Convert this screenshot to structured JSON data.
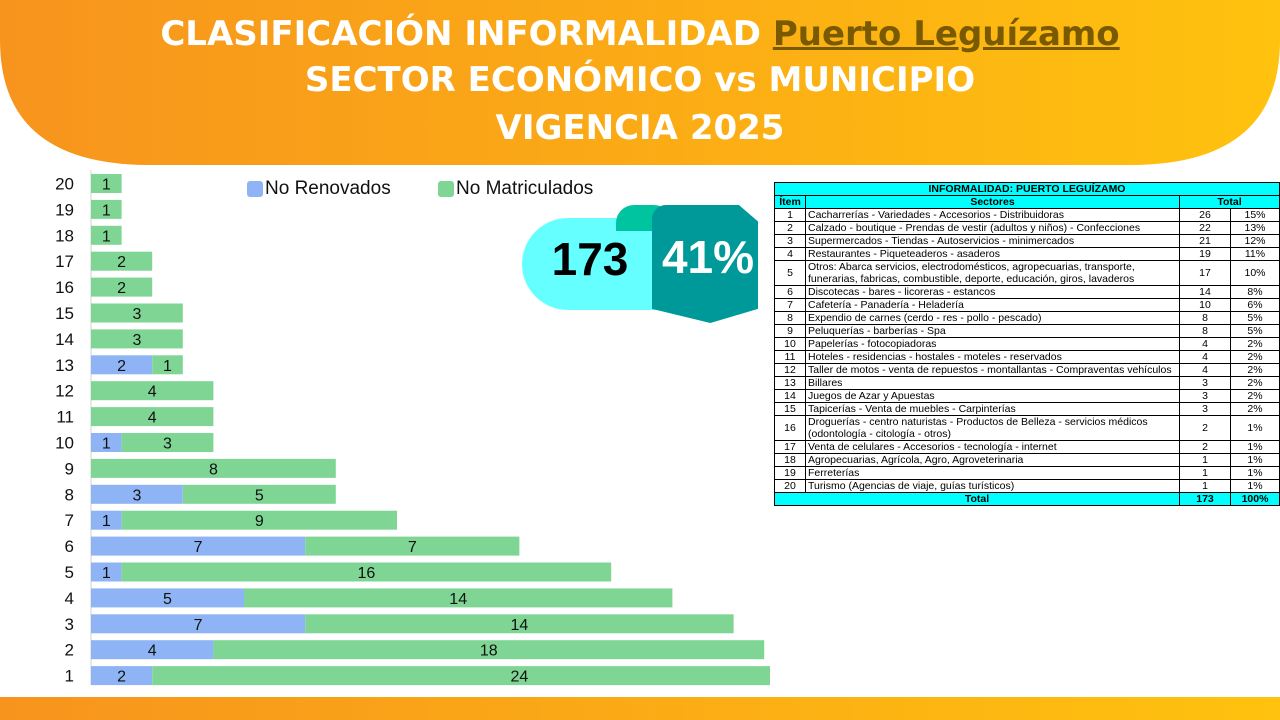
{
  "header": {
    "title_prefix": "CLASIFICACIÓN INFORMALIDAD",
    "municipality": "Puerto Leguízamo",
    "line2": "SECTOR ECONÓMICO vs MUNICIPIO",
    "line3": "VIGENCIA 2025"
  },
  "colors": {
    "header_gradient_start": "#f7941d",
    "header_gradient_end": "#ffc20e",
    "no_renovados": "#8fb4f5",
    "no_matriculados": "#7fd694",
    "table_header": "#00ffff",
    "badge_left": "#66ffff",
    "badge_right": "#009999"
  },
  "summary": {
    "total": "173",
    "percent": "41%"
  },
  "chart_data": {
    "type": "bar",
    "orientation": "horizontal",
    "stacked": true,
    "categories": [
      "1",
      "2",
      "3",
      "4",
      "5",
      "6",
      "7",
      "8",
      "9",
      "10",
      "11",
      "12",
      "13",
      "14",
      "15",
      "16",
      "17",
      "18",
      "19",
      "20"
    ],
    "series": [
      {
        "name": "No Renovados",
        "values": [
          2,
          4,
          7,
          5,
          1,
          7,
          1,
          3,
          0,
          1,
          0,
          0,
          2,
          0,
          0,
          0,
          0,
          0,
          0,
          0
        ]
      },
      {
        "name": "No Matriculados",
        "values": [
          24,
          18,
          14,
          14,
          16,
          7,
          9,
          5,
          8,
          3,
          4,
          4,
          1,
          3,
          3,
          2,
          2,
          1,
          1,
          1
        ]
      }
    ],
    "legend": [
      "No Renovados",
      "No Matriculados"
    ],
    "legend_position": "top",
    "xlim": [
      0,
      26
    ],
    "title": "",
    "xlabel": "",
    "ylabel": ""
  },
  "table": {
    "title": "INFORMALIDAD: PUERTO LEGUÍZAMO",
    "headers": {
      "item": "Ítem",
      "sector": "Sectores",
      "total": "Total"
    },
    "rows": [
      {
        "item": "1",
        "sector": "Cacharrerías - Variedades - Accesorios - Distribuidoras",
        "count": "26",
        "pct": "15%"
      },
      {
        "item": "2",
        "sector": "Calzado - boutique - Prendas de vestir (adultos y niños) - Confecciones",
        "count": "22",
        "pct": "13%"
      },
      {
        "item": "3",
        "sector": "Supermercados - Tiendas - Autoservicios - minimercados",
        "count": "21",
        "pct": "12%"
      },
      {
        "item": "4",
        "sector": "Restaurantes - Piqueteaderos - asaderos",
        "count": "19",
        "pct": "11%"
      },
      {
        "item": "5",
        "sector": "Otros: Abarca servicios, electrodomésticos, agropecuarias, transporte, funerarias, fabricas, combustible, deporte, educación, giros, lavaderos",
        "count": "17",
        "pct": "10%"
      },
      {
        "item": "6",
        "sector": "Discotecas - bares - licoreras - estancos",
        "count": "14",
        "pct": "8%"
      },
      {
        "item": "7",
        "sector": "Cafetería - Panadería - Heladería",
        "count": "10",
        "pct": "6%"
      },
      {
        "item": "8",
        "sector": "Expendio de carnes (cerdo - res - pollo - pescado)",
        "count": "8",
        "pct": "5%"
      },
      {
        "item": "9",
        "sector": "Peluquerías - barberías - Spa",
        "count": "8",
        "pct": "5%"
      },
      {
        "item": "10",
        "sector": "Papelerías - fotocopiadoras",
        "count": "4",
        "pct": "2%"
      },
      {
        "item": "11",
        "sector": "Hoteles - residencias - hostales - moteles - reservados",
        "count": "4",
        "pct": "2%"
      },
      {
        "item": "12",
        "sector": "Taller de motos - venta de repuestos - montallantas - Compraventas vehículos",
        "count": "4",
        "pct": "2%"
      },
      {
        "item": "13",
        "sector": "Billares",
        "count": "3",
        "pct": "2%"
      },
      {
        "item": "14",
        "sector": "Juegos de Azar y Apuestas",
        "count": "3",
        "pct": "2%"
      },
      {
        "item": "15",
        "sector": "Tapicerías - Venta de muebles - Carpinterías",
        "count": "3",
        "pct": "2%"
      },
      {
        "item": "16",
        "sector": "Droguerías - centro naturistas - Productos de Belleza - servicios médicos (odontología - citología - otros)",
        "count": "2",
        "pct": "1%"
      },
      {
        "item": "17",
        "sector": "Venta de celulares - Accesorios - tecnología - internet",
        "count": "2",
        "pct": "1%"
      },
      {
        "item": "18",
        "sector": "Agropecuarias, Agrícola, Agro, Agroveterinaria",
        "count": "1",
        "pct": "1%"
      },
      {
        "item": "19",
        "sector": "Ferreterías",
        "count": "1",
        "pct": "1%"
      },
      {
        "item": "20",
        "sector": "Turismo (Agencias de viaje, guías turísticos)",
        "count": "1",
        "pct": "1%"
      }
    ],
    "footer": {
      "label": "Total",
      "count": "173",
      "pct": "100%"
    }
  }
}
